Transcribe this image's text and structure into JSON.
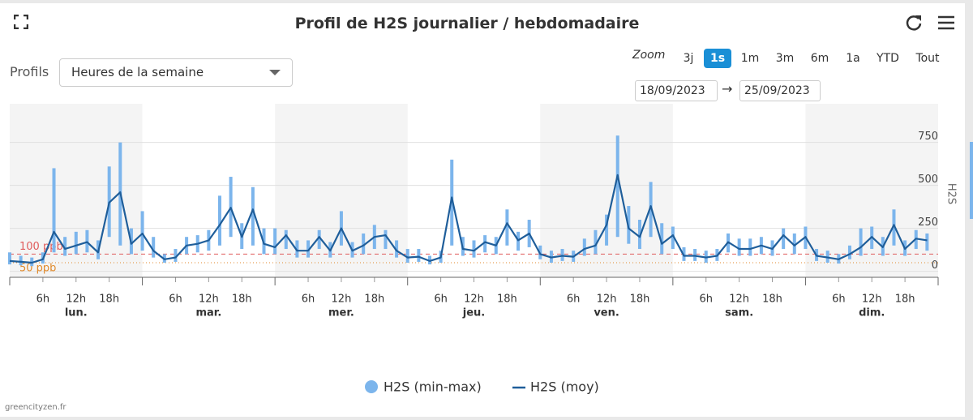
{
  "header": {
    "title": "Profil de H2S journalier / hebdomadaire"
  },
  "controls": {
    "profile_label": "Profils",
    "profile_value": "Heures de la semaine",
    "zoom_label": "Zoom",
    "zoom_buttons": [
      "3j",
      "1s",
      "1m",
      "3m",
      "6m",
      "1a",
      "YTD",
      "Tout"
    ],
    "date_from": "18/09/2023",
    "date_to": "25/09/2023"
  },
  "footer": "greencityzen.fr",
  "chart_data": {
    "type": "line",
    "y_title": "H2S",
    "ylim": [
      -35,
      975
    ],
    "yticks": [
      0,
      250,
      500,
      750
    ],
    "xlim": [
      0,
      168
    ],
    "xticks": [
      {
        "value": 6,
        "label": "6h"
      },
      {
        "value": 12,
        "label": "12h"
      },
      {
        "value": 18,
        "label": "18h"
      },
      {
        "value": 30,
        "label": "6h"
      },
      {
        "value": 36,
        "label": "12h"
      },
      {
        "value": 42,
        "label": "18h"
      },
      {
        "value": 54,
        "label": "6h"
      },
      {
        "value": 60,
        "label": "12h"
      },
      {
        "value": 66,
        "label": "18h"
      },
      {
        "value": 78,
        "label": "6h"
      },
      {
        "value": 84,
        "label": "12h"
      },
      {
        "value": 90,
        "label": "18h"
      },
      {
        "value": 102,
        "label": "6h"
      },
      {
        "value": 108,
        "label": "12h"
      },
      {
        "value": 114,
        "label": "18h"
      },
      {
        "value": 126,
        "label": "6h"
      },
      {
        "value": 132,
        "label": "12h"
      },
      {
        "value": 138,
        "label": "18h"
      },
      {
        "value": 150,
        "label": "6h"
      },
      {
        "value": 156,
        "label": "12h"
      },
      {
        "value": 162,
        "label": "18h"
      }
    ],
    "days": [
      "lun.",
      "mar.",
      "mer.",
      "jeu.",
      "ven.",
      "sam.",
      "dim."
    ],
    "plot_lines": [
      {
        "value": 100,
        "label": "100 ppb",
        "color": "#e05c5c"
      },
      {
        "value": 50,
        "label": "50 ppb",
        "color": "#e08a2c"
      }
    ],
    "x": [
      0,
      2,
      4,
      6,
      8,
      10,
      12,
      14,
      16,
      18,
      20,
      22,
      24,
      26,
      28,
      30,
      32,
      34,
      36,
      38,
      40,
      42,
      44,
      46,
      48,
      50,
      52,
      54,
      56,
      58,
      60,
      62,
      64,
      66,
      68,
      70,
      72,
      74,
      76,
      78,
      80,
      82,
      84,
      86,
      88,
      90,
      92,
      94,
      96,
      98,
      100,
      102,
      104,
      106,
      108,
      110,
      112,
      114,
      116,
      118,
      120,
      122,
      124,
      126,
      128,
      130,
      132,
      134,
      136,
      138,
      140,
      142,
      144,
      146,
      148,
      150,
      152,
      154,
      156,
      158,
      160,
      162,
      164,
      166
    ],
    "series": [
      {
        "name": "H2S (min-max)",
        "color": "#7cb5ec",
        "low": [
          40,
          35,
          30,
          45,
          110,
          90,
          100,
          110,
          70,
          200,
          150,
          100,
          120,
          80,
          50,
          55,
          100,
          110,
          120,
          150,
          200,
          130,
          150,
          100,
          100,
          130,
          80,
          80,
          130,
          80,
          150,
          80,
          100,
          130,
          130,
          80,
          50,
          55,
          40,
          50,
          150,
          90,
          80,
          110,
          100,
          150,
          120,
          140,
          70,
          50,
          60,
          55,
          90,
          100,
          150,
          200,
          160,
          130,
          200,
          100,
          130,
          60,
          60,
          50,
          60,
          110,
          90,
          90,
          100,
          90,
          130,
          100,
          130,
          60,
          50,
          45,
          70,
          90,
          130,
          90,
          150,
          90,
          130,
          120
        ],
        "high": [
          110,
          90,
          80,
          110,
          600,
          200,
          230,
          240,
          180,
          610,
          750,
          250,
          350,
          200,
          100,
          130,
          200,
          210,
          240,
          440,
          550,
          280,
          490,
          250,
          250,
          240,
          180,
          180,
          240,
          170,
          350,
          170,
          220,
          270,
          240,
          180,
          130,
          130,
          90,
          120,
          650,
          200,
          180,
          210,
          200,
          360,
          230,
          300,
          150,
          120,
          130,
          120,
          190,
          240,
          330,
          790,
          380,
          300,
          520,
          280,
          260,
          140,
          130,
          120,
          130,
          220,
          190,
          190,
          200,
          180,
          250,
          220,
          260,
          130,
          120,
          100,
          150,
          250,
          260,
          200,
          360,
          180,
          240,
          220
        ]
      },
      {
        "name": "H2S (moy)",
        "color": "#1f5e9a",
        "values": [
          60,
          55,
          50,
          70,
          230,
          130,
          150,
          170,
          110,
          400,
          460,
          160,
          220,
          120,
          70,
          80,
          150,
          160,
          180,
          270,
          370,
          200,
          360,
          160,
          140,
          210,
          120,
          120,
          200,
          120,
          250,
          120,
          150,
          200,
          210,
          120,
          80,
          85,
          60,
          80,
          430,
          130,
          120,
          170,
          150,
          280,
          180,
          220,
          100,
          80,
          90,
          85,
          130,
          150,
          270,
          560,
          250,
          200,
          380,
          160,
          210,
          90,
          90,
          80,
          90,
          170,
          130,
          130,
          150,
          130,
          210,
          150,
          200,
          90,
          80,
          70,
          100,
          140,
          200,
          140,
          270,
          130,
          190,
          180
        ]
      }
    ]
  }
}
